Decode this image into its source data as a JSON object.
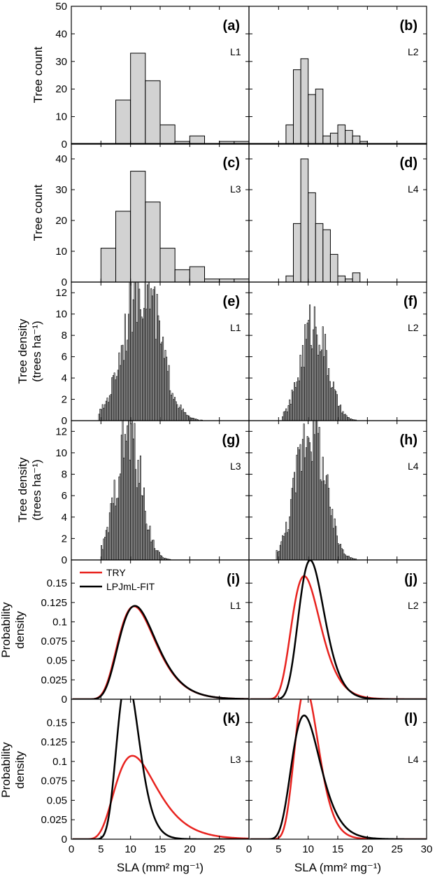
{
  "figure": {
    "x_axis_title": "SLA (mm² mg⁻¹)",
    "row_titles": {
      "count": "Tree count",
      "density_line1": "Tree density",
      "density_line2": "(trees ha⁻¹)",
      "prob_line1": "Probability",
      "prob_line2": "density"
    },
    "legend": [
      {
        "label": "TRY",
        "color": "#e8231f"
      },
      {
        "label": "LPJmL-FIT",
        "color": "#000000"
      }
    ],
    "bar_fill_color": "#d2d2d2"
  },
  "chart_data": [
    {
      "id": "a",
      "type": "bar",
      "letter": "(a)",
      "site": "L1",
      "xlim": [
        0,
        30
      ],
      "ylim": [
        0,
        50
      ],
      "bin_edges": [
        5,
        7.5,
        10,
        12.5,
        15,
        17.5,
        20,
        22.5,
        25,
        27.5,
        30
      ],
      "values": [
        0,
        16,
        33,
        23,
        7,
        1,
        3,
        0,
        1,
        1
      ]
    },
    {
      "id": "b",
      "type": "bar",
      "letter": "(b)",
      "site": "L2",
      "xlim": [
        0,
        30
      ],
      "ylim": [
        0,
        50
      ],
      "bin_edges": [
        5,
        6.25,
        7.5,
        8.75,
        10,
        11.25,
        12.5,
        13.75,
        15,
        16.25,
        17.5,
        18.75,
        20,
        21.25
      ],
      "values": [
        0,
        7,
        27,
        31,
        18,
        20,
        3,
        4,
        7,
        5,
        3,
        1,
        0
      ]
    },
    {
      "id": "c",
      "type": "bar",
      "letter": "(c)",
      "site": "L3",
      "xlim": [
        0,
        30
      ],
      "ylim": [
        0,
        45
      ],
      "bin_edges": [
        5,
        7.5,
        10,
        12.5,
        15,
        17.5,
        20,
        22.5,
        25,
        27.5,
        30
      ],
      "values": [
        11,
        23,
        36,
        26,
        11,
        4,
        5,
        1,
        1,
        1
      ]
    },
    {
      "id": "d",
      "type": "bar",
      "letter": "(d)",
      "site": "L4",
      "xlim": [
        0,
        30
      ],
      "ylim": [
        0,
        45
      ],
      "bin_edges": [
        5,
        6.25,
        7.5,
        8.75,
        10,
        11.25,
        12.5,
        13.75,
        15,
        16.25,
        17.5,
        18.75,
        20,
        21.25
      ],
      "values": [
        0,
        2,
        19,
        40,
        29,
        19,
        17,
        9,
        2,
        1,
        3,
        0,
        0
      ]
    },
    {
      "id": "e",
      "type": "bar",
      "letter": "(e)",
      "site": "L1",
      "xlim": [
        0,
        30
      ],
      "ylim": [
        0,
        13
      ],
      "center": 11.8,
      "sigma": 3.0,
      "peak": 13.3,
      "bin_width": 0.2,
      "xmin": 4.6,
      "xmax": 25.2
    },
    {
      "id": "f",
      "type": "bar",
      "letter": "(f)",
      "site": "L2",
      "xlim": [
        0,
        30
      ],
      "ylim": [
        0,
        13
      ],
      "center": 10.9,
      "sigma": 2.2,
      "peak": 9.2,
      "bin_width": 0.2,
      "xmin": 5.6,
      "xmax": 19.4
    },
    {
      "id": "g",
      "type": "bar",
      "letter": "(g)",
      "site": "L3",
      "xlim": [
        0,
        30
      ],
      "ylim": [
        0,
        13
      ],
      "center": 9.6,
      "sigma": 2.1,
      "peak": 11.8,
      "bin_width": 0.2,
      "xmin": 5.0,
      "xmax": 18.0
    },
    {
      "id": "h",
      "type": "bar",
      "letter": "(h)",
      "site": "L4",
      "xlim": [
        0,
        30
      ],
      "ylim": [
        0,
        13
      ],
      "center": 10.3,
      "sigma": 2.4,
      "peak": 12.8,
      "bin_width": 0.2,
      "xmin": 4.6,
      "xmax": 20.4
    },
    {
      "id": "i",
      "type": "line",
      "letter": "(i)",
      "site": "L1",
      "xlim": [
        0,
        30
      ],
      "ylim": [
        0,
        0.18
      ],
      "series": [
        {
          "name": "TRY",
          "color": "#e8231f",
          "mu_log": 2.45,
          "sigma_log": 0.3
        },
        {
          "name": "LPJmL-FIT",
          "color": "#000000",
          "mu_log": 2.46,
          "sigma_log": 0.295
        }
      ]
    },
    {
      "id": "j",
      "type": "line",
      "letter": "(j)",
      "site": "L2",
      "xlim": [
        0,
        30
      ],
      "ylim": [
        0,
        0.18
      ],
      "series": [
        {
          "name": "TRY",
          "color": "#e8231f",
          "mu_log": 2.3,
          "sigma_log": 0.26
        },
        {
          "name": "LPJmL-FIT",
          "color": "#000000",
          "mu_log": 2.38,
          "sigma_log": 0.21
        }
      ]
    },
    {
      "id": "k",
      "type": "line",
      "letter": "(k)",
      "site": "L3",
      "xlim": [
        0,
        30
      ],
      "ylim": [
        0,
        0.18
      ],
      "series": [
        {
          "name": "TRY",
          "color": "#e8231f",
          "mu_log": 2.45,
          "sigma_log": 0.34
        },
        {
          "name": "LPJmL-FIT",
          "color": "#000000",
          "mu_log": 2.28,
          "sigma_log": 0.2
        }
      ]
    },
    {
      "id": "l",
      "type": "line",
      "letter": "(l)",
      "site": "L4",
      "xlim": [
        0,
        30
      ],
      "ylim": [
        0,
        0.18
      ],
      "series": [
        {
          "name": "TRY",
          "color": "#e8231f",
          "mu_log": 2.3,
          "sigma_log": 0.21
        },
        {
          "name": "LPJmL-FIT",
          "color": "#000000",
          "mu_log": 2.3,
          "sigma_log": 0.26
        }
      ]
    }
  ],
  "y_ticks": {
    "ab": [
      0,
      10,
      20,
      30,
      40,
      50
    ],
    "cd": [
      0,
      10,
      20,
      30,
      40
    ],
    "efgh": [
      0,
      2,
      4,
      6,
      8,
      10,
      12
    ],
    "ijkl": [
      0,
      0.025,
      0.05,
      0.075,
      0.1,
      0.125,
      0.15
    ]
  },
  "x_ticks_left": [
    0,
    5,
    10,
    15,
    20,
    25
  ],
  "x_ticks_right": [
    0,
    5,
    10,
    15,
    20,
    25,
    30
  ]
}
